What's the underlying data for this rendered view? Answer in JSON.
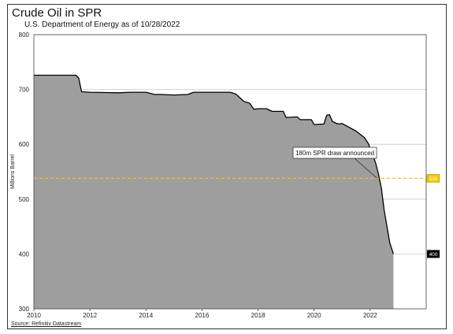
{
  "chart_data": {
    "type": "area",
    "title": "Crude Oil in SPR",
    "subtitle": "U.S. Department of Energy as of 10/28/2022",
    "ylabel": "Millions Barrel",
    "xlabel": "",
    "source": "Source: Refinitiv Datastream",
    "xlim": [
      2010,
      2024
    ],
    "ylim": [
      300,
      800
    ],
    "x_ticks": [
      "2010",
      "2012",
      "2014",
      "2016",
      "2018",
      "2020",
      "2022"
    ],
    "y_ticks": [
      "300",
      "400",
      "500",
      "600",
      "700",
      "800"
    ],
    "grid": true,
    "colors": {
      "area": "#9e9e9e",
      "line": "#000000",
      "reference": "#f5c400"
    },
    "reference_line": {
      "value": 538,
      "label": "538"
    },
    "last_value": {
      "value": 400,
      "label": "400"
    },
    "annotation": {
      "text": "180m SPR draw announced",
      "x": 2022.25,
      "y": 538
    },
    "series": [
      {
        "x": [
          2010.0,
          2011.0,
          2011.5,
          2011.6,
          2011.7,
          2012.0,
          2013.0,
          2013.5,
          2014.0,
          2014.3,
          2014.5,
          2015.0,
          2015.5,
          2015.7,
          2016.0,
          2016.5,
          2017.0,
          2017.2,
          2017.35,
          2017.5,
          2017.7,
          2017.85,
          2018.0,
          2018.3,
          2018.5,
          2018.9,
          2019.0,
          2019.4,
          2019.5,
          2019.9,
          2020.0,
          2020.35,
          2020.45,
          2020.55,
          2020.65,
          2020.8,
          2020.9,
          2021.0,
          2021.5,
          2021.6,
          2021.8,
          2021.95,
          2022.0,
          2022.1,
          2022.2,
          2022.3,
          2022.4,
          2022.5,
          2022.6,
          2022.7,
          2022.83
        ],
        "values": [
          726,
          726,
          726,
          721,
          696,
          695,
          694,
          695,
          695,
          691,
          691,
          690,
          691,
          695,
          695,
          695,
          695,
          692,
          685,
          678,
          675,
          664,
          665,
          665,
          660,
          660,
          649,
          650,
          645,
          645,
          636,
          637,
          653,
          654,
          642,
          638,
          637,
          638,
          624,
          620,
          612,
          600,
          590,
          580,
          565,
          545,
          520,
          480,
          450,
          420,
          400
        ]
      }
    ]
  }
}
